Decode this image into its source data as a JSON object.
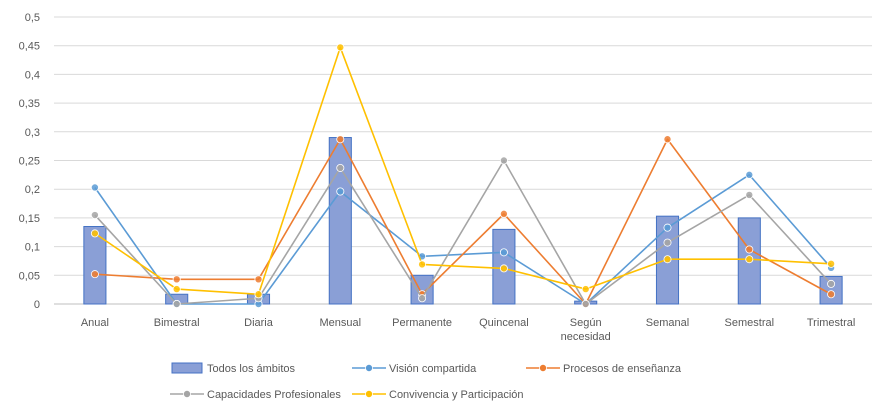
{
  "chart_data": {
    "type": "bar",
    "title": "",
    "xlabel": "",
    "ylabel": "",
    "ylim": [
      0,
      0.5
    ],
    "y_ticks": [
      "0",
      "0,05",
      "0,1",
      "0,15",
      "0,2",
      "0,25",
      "0,3",
      "0,35",
      "0,4",
      "0,45",
      "0,5"
    ],
    "grid": true,
    "legend_position": "bottom",
    "categories": [
      {
        "label_lines": [
          "Anual"
        ]
      },
      {
        "label_lines": [
          "Bimestral"
        ]
      },
      {
        "label_lines": [
          "Diaria"
        ]
      },
      {
        "label_lines": [
          "Mensual"
        ]
      },
      {
        "label_lines": [
          "Permanente"
        ]
      },
      {
        "label_lines": [
          "Quincenal"
        ]
      },
      {
        "label_lines": [
          "Según",
          "necesidad"
        ]
      },
      {
        "label_lines": [
          "Semanal"
        ]
      },
      {
        "label_lines": [
          "Semestral"
        ]
      },
      {
        "label_lines": [
          "Trimestral"
        ]
      }
    ],
    "series": [
      {
        "name": "Todos los ámbitos",
        "kind": "bar",
        "color": "#8A9FD6",
        "edge": "#4472C4",
        "values": [
          0.135,
          0.017,
          0.017,
          0.29,
          0.05,
          0.13,
          0.005,
          0.153,
          0.15,
          0.048
        ]
      },
      {
        "name": "Visión compartida",
        "kind": "line",
        "color": "#5B9BD5",
        "values": [
          0.203,
          0.0,
          0.0,
          0.196,
          0.083,
          0.09,
          0.0,
          0.133,
          0.225,
          0.063
        ]
      },
      {
        "name": "Procesos de enseñanza",
        "kind": "line",
        "color": "#ED7D31",
        "values": [
          0.052,
          0.043,
          0.043,
          0.287,
          0.017,
          0.157,
          0.0,
          0.287,
          0.095,
          0.017
        ]
      },
      {
        "name": "Capacidades Profesionales",
        "kind": "line",
        "color": "#A5A5A5",
        "values": [
          0.155,
          0.0,
          0.01,
          0.237,
          0.01,
          0.25,
          0.0,
          0.107,
          0.19,
          0.035
        ]
      },
      {
        "name": "Convivencia y Participación",
        "kind": "line",
        "color": "#FFC000",
        "values": [
          0.123,
          0.026,
          0.017,
          0.447,
          0.069,
          0.062,
          0.026,
          0.078,
          0.078,
          0.07
        ]
      }
    ]
  }
}
